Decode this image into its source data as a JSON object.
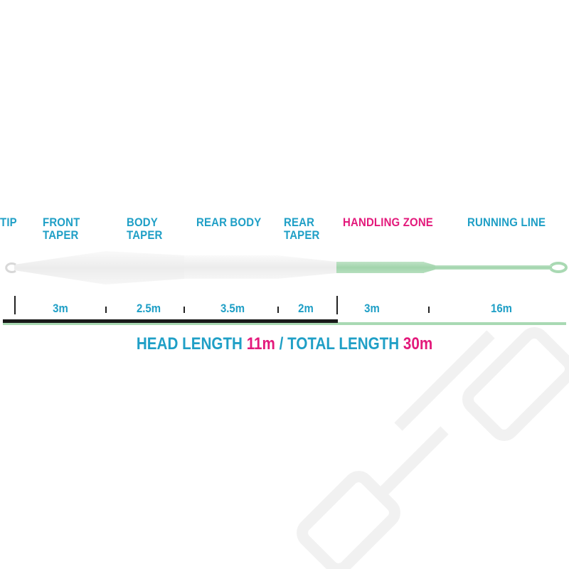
{
  "sections": [
    {
      "label_lines": [
        "TIP"
      ],
      "color": "#1f9fc6"
    },
    {
      "label_lines": [
        "FRONT",
        "TAPER"
      ],
      "color": "#1f9fc6"
    },
    {
      "label_lines": [
        "BODY",
        "TAPER"
      ],
      "color": "#1f9fc6"
    },
    {
      "label_lines": [
        "REAR BODY"
      ],
      "color": "#1f9fc6"
    },
    {
      "label_lines": [
        "REAR",
        "TAPER"
      ],
      "color": "#1f9fc6"
    },
    {
      "label_lines": [
        "HANDLING ZONE"
      ],
      "color": "#e3197b"
    },
    {
      "label_lines": [
        "RUNNING LINE"
      ],
      "color": "#1f9fc6"
    }
  ],
  "lengths": [
    "3m",
    "2.5m",
    "3.5m",
    "2m",
    "3m",
    "16m"
  ],
  "summary": {
    "head_label": "HEAD LENGTH",
    "head_value": "11m",
    "separator": "/",
    "total_label": "TOTAL LENGTH",
    "total_value": "30m"
  },
  "colors": {
    "label": "#1f9fc6",
    "accent": "#e3197b",
    "running_line": "#a9d9b3",
    "head_bar": "#1a1a1a",
    "head_body": "#f2f2f2"
  },
  "watermark": "OFC"
}
